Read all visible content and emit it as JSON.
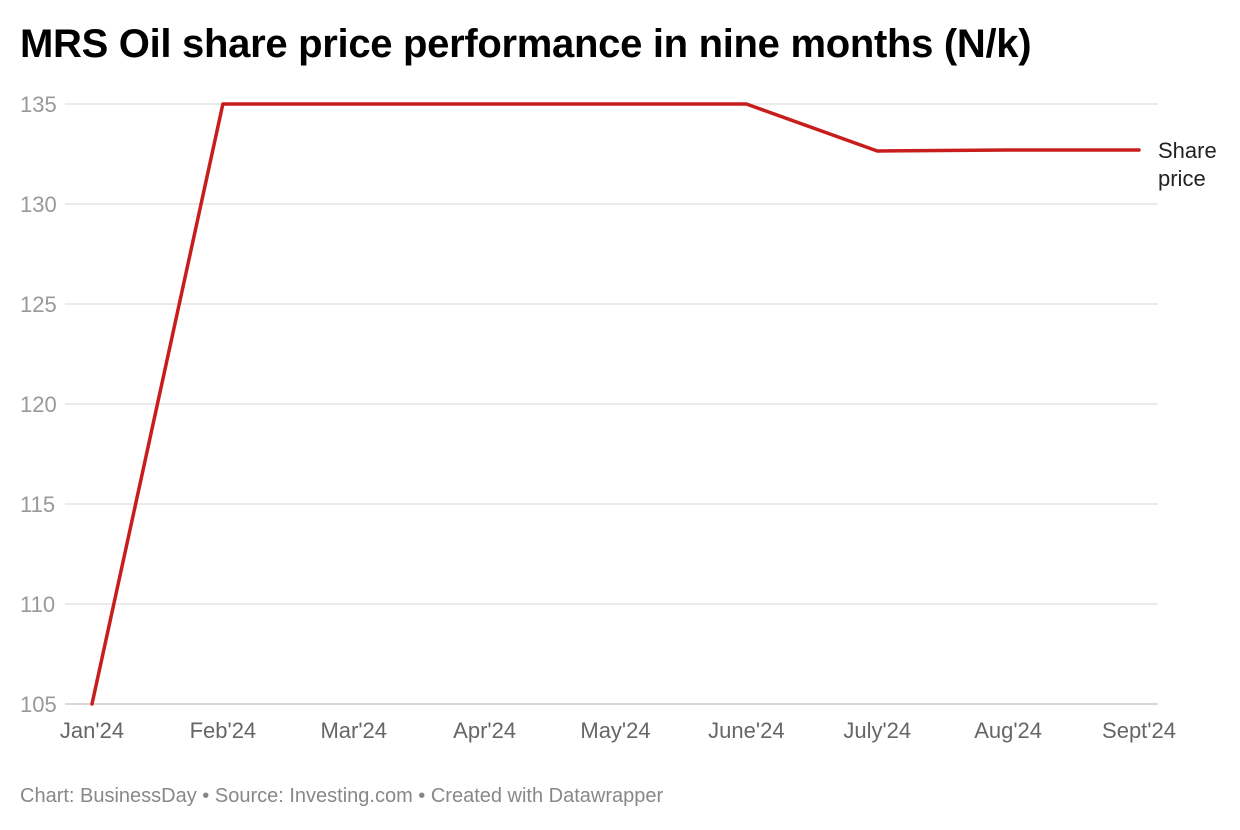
{
  "chart_data": {
    "type": "line",
    "title": "MRS Oil share price performance in nine months (N/k)",
    "categories": [
      "Jan'24",
      "Feb'24",
      "Mar'24",
      "Apr'24",
      "May'24",
      "June'24",
      "July'24",
      "Aug'24",
      "Sept'24"
    ],
    "series": [
      {
        "name": "Share price",
        "values": [
          105,
          135,
          135,
          135,
          135,
          135,
          132.65,
          132.7,
          132.7
        ],
        "color": "#c71e1d"
      }
    ],
    "ylim": [
      105,
      135
    ],
    "yticks": [
      105,
      110,
      115,
      120,
      125,
      130,
      135
    ],
    "grid": true,
    "legend": "direct label at line end (right)"
  },
  "footer": "Chart: BusinessDay • Source: Investing.com • Created with Datawrapper"
}
